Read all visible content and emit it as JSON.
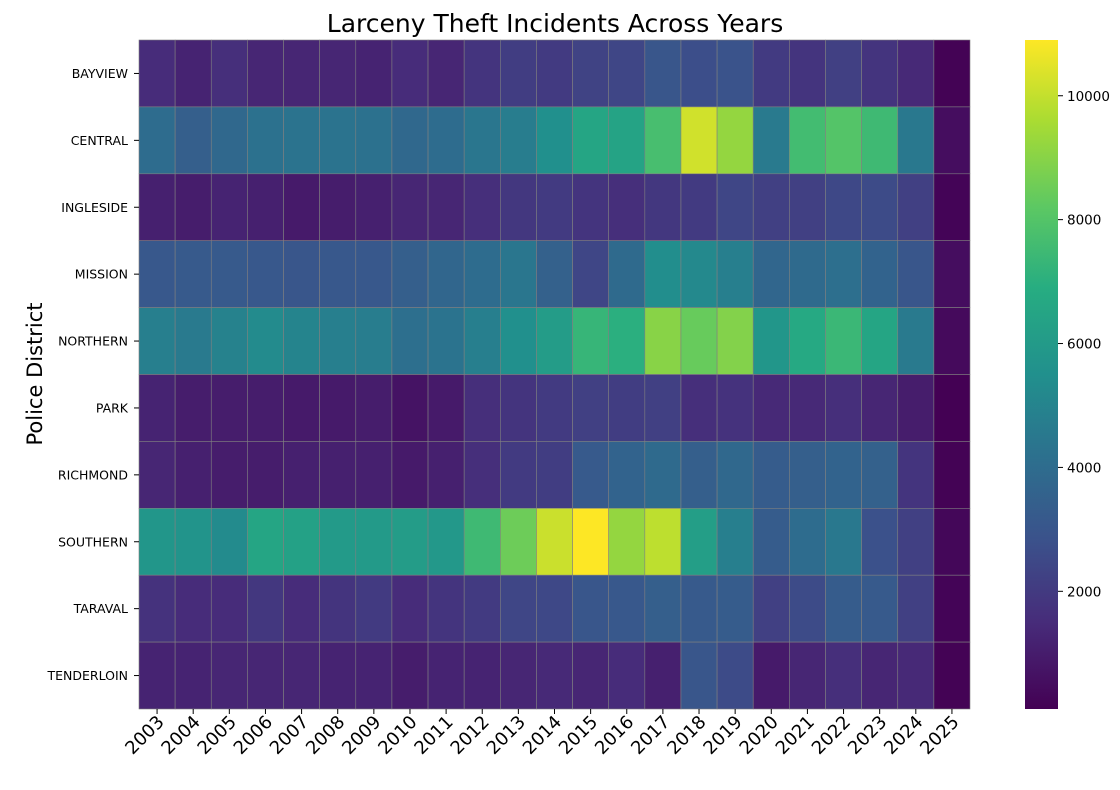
{
  "chart_data": {
    "type": "heatmap",
    "title": "Larceny Theft Incidents Across Years",
    "xlabel": "",
    "ylabel": "Police District",
    "x": [
      "2003",
      "2004",
      "2005",
      "2006",
      "2007",
      "2008",
      "2009",
      "2010",
      "2011",
      "2012",
      "2013",
      "2014",
      "2015",
      "2016",
      "2017",
      "2018",
      "2019",
      "2020",
      "2021",
      "2022",
      "2023",
      "2024",
      "2025"
    ],
    "y": [
      "BAYVIEW",
      "CENTRAL",
      "INGLESIDE",
      "MISSION",
      "NORTHERN",
      "PARK",
      "RICHMOND",
      "SOUTHERN",
      "TARAVAL",
      "TENDERLOIN"
    ],
    "values": [
      [
        1500,
        1200,
        1600,
        1300,
        1300,
        1300,
        1200,
        1500,
        1300,
        1800,
        2100,
        2000,
        2300,
        2400,
        3000,
        2700,
        2900,
        2000,
        1800,
        2200,
        1800,
        1400,
        150
      ],
      [
        4000,
        3400,
        3800,
        4200,
        4300,
        4300,
        4200,
        3800,
        4000,
        4400,
        4700,
        5500,
        6500,
        6400,
        7700,
        10200,
        9200,
        4600,
        7600,
        8000,
        7500,
        4500,
        500
      ],
      [
        1100,
        1000,
        1200,
        1100,
        900,
        1000,
        1100,
        1300,
        1300,
        1600,
        1900,
        2000,
        1800,
        1600,
        1900,
        2000,
        2400,
        2200,
        2200,
        2500,
        2600,
        2200,
        200
      ],
      [
        3100,
        3200,
        3200,
        3100,
        3000,
        3100,
        3100,
        3400,
        3700,
        4000,
        4400,
        3500,
        2400,
        3900,
        5400,
        5200,
        4800,
        3700,
        3900,
        4100,
        3600,
        3000,
        500
      ],
      [
        4800,
        4600,
        4900,
        5300,
        5000,
        4800,
        4700,
        4100,
        4300,
        4800,
        5500,
        6100,
        7300,
        7000,
        9000,
        8400,
        8900,
        5800,
        6700,
        7400,
        6500,
        4600,
        400
      ],
      [
        1200,
        1000,
        1000,
        1000,
        900,
        900,
        1000,
        700,
        900,
        1600,
        1800,
        2000,
        2200,
        2100,
        2200,
        1600,
        1700,
        1400,
        1400,
        1600,
        1300,
        1000,
        100
      ],
      [
        1300,
        1100,
        1000,
        1000,
        1100,
        1100,
        1100,
        900,
        1100,
        1600,
        2000,
        2100,
        3200,
        3600,
        3900,
        3400,
        3800,
        3300,
        3400,
        3600,
        3500,
        1800,
        150
      ],
      [
        5800,
        5700,
        5300,
        6500,
        6300,
        6000,
        6000,
        6100,
        5900,
        7500,
        8500,
        10100,
        10900,
        9200,
        9900,
        6200,
        4800,
        3300,
        4000,
        4500,
        2800,
        2200,
        300
      ],
      [
        1700,
        1500,
        1500,
        1900,
        1500,
        1800,
        2000,
        1500,
        1800,
        2000,
        2400,
        2500,
        3000,
        3100,
        3400,
        3200,
        3300,
        2200,
        2600,
        3300,
        3200,
        2200,
        200
      ],
      [
        1200,
        1200,
        1300,
        1300,
        1300,
        1200,
        1200,
        1000,
        1200,
        1200,
        1300,
        1400,
        1300,
        1500,
        1100,
        3000,
        2600,
        900,
        1300,
        1600,
        1300,
        1400,
        150
      ]
    ],
    "vmin": 100,
    "vmax": 10900,
    "colorbar_ticks": [
      2000,
      4000,
      6000,
      8000,
      10000
    ],
    "colormap": "viridis",
    "cell_border_color": "#808080"
  }
}
